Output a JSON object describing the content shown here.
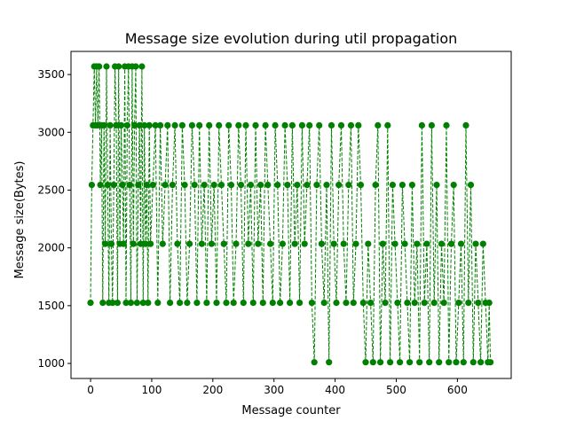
{
  "chart_data": {
    "type": "line",
    "title": "Message size evolution during util propagation",
    "xlabel": "Message counter",
    "ylabel": "Message size(Bytes)",
    "xlim": [
      -32,
      688
    ],
    "ylim": [
      870,
      3700
    ],
    "xticks": [
      0,
      100,
      200,
      300,
      400,
      500,
      600
    ],
    "yticks": [
      1000,
      1500,
      2000,
      2500,
      3000,
      3500
    ],
    "grid": false,
    "line_style": "dashed",
    "marker": "circle",
    "series_color": "#008000",
    "levels": [
      1010,
      1525,
      2035,
      2545,
      3060,
      3570
    ],
    "series": [
      {
        "values": [
          [
            0,
            1525
          ],
          [
            2,
            2545
          ],
          [
            4,
            3060
          ],
          [
            6,
            3570
          ],
          [
            8,
            3060
          ],
          [
            10,
            3570
          ],
          [
            12,
            3060
          ],
          [
            14,
            3570
          ],
          [
            16,
            2545
          ],
          [
            18,
            3060
          ],
          [
            20,
            1525
          ],
          [
            22,
            3060
          ],
          [
            24,
            2035
          ],
          [
            26,
            3570
          ],
          [
            28,
            2545
          ],
          [
            30,
            1525
          ],
          [
            32,
            3060
          ],
          [
            34,
            2035
          ],
          [
            36,
            1525
          ],
          [
            38,
            2545
          ],
          [
            40,
            3570
          ],
          [
            42,
            3060
          ],
          [
            44,
            1525
          ],
          [
            46,
            3570
          ],
          [
            48,
            2035
          ],
          [
            50,
            3060
          ],
          [
            52,
            2545
          ],
          [
            54,
            2035
          ],
          [
            56,
            3570
          ],
          [
            58,
            1525
          ],
          [
            60,
            3060
          ],
          [
            62,
            3570
          ],
          [
            64,
            2545
          ],
          [
            66,
            1525
          ],
          [
            68,
            3570
          ],
          [
            70,
            2035
          ],
          [
            72,
            3060
          ],
          [
            74,
            3570
          ],
          [
            76,
            1525
          ],
          [
            78,
            2545
          ],
          [
            80,
            3060
          ],
          [
            82,
            2035
          ],
          [
            84,
            3570
          ],
          [
            86,
            1525
          ],
          [
            88,
            3060
          ],
          [
            90,
            2035
          ],
          [
            92,
            2545
          ],
          [
            94,
            1525
          ],
          [
            96,
            3060
          ],
          [
            98,
            2035
          ],
          [
            102,
            2545
          ],
          [
            106,
            3060
          ],
          [
            110,
            1525
          ],
          [
            114,
            3060
          ],
          [
            118,
            2035
          ],
          [
            122,
            2545
          ],
          [
            126,
            3060
          ],
          [
            130,
            1525
          ],
          [
            134,
            2545
          ],
          [
            138,
            3060
          ],
          [
            142,
            2035
          ],
          [
            146,
            1525
          ],
          [
            150,
            3060
          ],
          [
            154,
            2545
          ],
          [
            158,
            1525
          ],
          [
            162,
            2035
          ],
          [
            166,
            3060
          ],
          [
            170,
            2545
          ],
          [
            174,
            1525
          ],
          [
            178,
            3060
          ],
          [
            182,
            2035
          ],
          [
            186,
            2545
          ],
          [
            190,
            1525
          ],
          [
            194,
            3060
          ],
          [
            198,
            2035
          ],
          [
            202,
            2545
          ],
          [
            206,
            1525
          ],
          [
            210,
            3060
          ],
          [
            214,
            2545
          ],
          [
            218,
            2035
          ],
          [
            222,
            1525
          ],
          [
            226,
            3060
          ],
          [
            230,
            2545
          ],
          [
            234,
            1525
          ],
          [
            238,
            2035
          ],
          [
            242,
            3060
          ],
          [
            246,
            2545
          ],
          [
            250,
            1525
          ],
          [
            254,
            3060
          ],
          [
            258,
            2035
          ],
          [
            262,
            2545
          ],
          [
            266,
            1525
          ],
          [
            270,
            3060
          ],
          [
            274,
            2035
          ],
          [
            278,
            2545
          ],
          [
            282,
            1525
          ],
          [
            286,
            3060
          ],
          [
            290,
            2545
          ],
          [
            294,
            2035
          ],
          [
            298,
            1525
          ],
          [
            302,
            3060
          ],
          [
            306,
            2545
          ],
          [
            310,
            1525
          ],
          [
            314,
            2035
          ],
          [
            318,
            3060
          ],
          [
            322,
            2545
          ],
          [
            326,
            1525
          ],
          [
            330,
            3060
          ],
          [
            334,
            2035
          ],
          [
            338,
            2545
          ],
          [
            342,
            1525
          ],
          [
            346,
            3060
          ],
          [
            350,
            2035
          ],
          [
            354,
            2545
          ],
          [
            358,
            3060
          ],
          [
            362,
            1525
          ],
          [
            366,
            1010
          ],
          [
            370,
            2545
          ],
          [
            374,
            3060
          ],
          [
            378,
            2035
          ],
          [
            382,
            1525
          ],
          [
            386,
            2545
          ],
          [
            390,
            1010
          ],
          [
            394,
            3060
          ],
          [
            398,
            2035
          ],
          [
            402,
            1525
          ],
          [
            406,
            2545
          ],
          [
            410,
            3060
          ],
          [
            414,
            2035
          ],
          [
            418,
            1525
          ],
          [
            422,
            2545
          ],
          [
            426,
            3060
          ],
          [
            430,
            1525
          ],
          [
            434,
            2035
          ],
          [
            438,
            3060
          ],
          [
            442,
            2545
          ],
          [
            446,
            1525
          ],
          [
            450,
            1010
          ],
          [
            454,
            2035
          ],
          [
            458,
            1525
          ],
          [
            462,
            1010
          ],
          [
            466,
            2545
          ],
          [
            470,
            3060
          ],
          [
            474,
            1010
          ],
          [
            478,
            2035
          ],
          [
            482,
            1525
          ],
          [
            486,
            3060
          ],
          [
            490,
            1010
          ],
          [
            494,
            2545
          ],
          [
            498,
            2035
          ],
          [
            502,
            1525
          ],
          [
            506,
            1010
          ],
          [
            510,
            2545
          ],
          [
            514,
            2035
          ],
          [
            518,
            1525
          ],
          [
            522,
            1010
          ],
          [
            526,
            2545
          ],
          [
            530,
            1525
          ],
          [
            534,
            2035
          ],
          [
            538,
            1010
          ],
          [
            542,
            3060
          ],
          [
            546,
            1525
          ],
          [
            550,
            2035
          ],
          [
            554,
            1010
          ],
          [
            558,
            3060
          ],
          [
            562,
            1525
          ],
          [
            566,
            2545
          ],
          [
            570,
            1010
          ],
          [
            574,
            2035
          ],
          [
            578,
            1525
          ],
          [
            582,
            3060
          ],
          [
            586,
            1010
          ],
          [
            590,
            2035
          ],
          [
            594,
            2545
          ],
          [
            598,
            1010
          ],
          [
            602,
            1525
          ],
          [
            606,
            2035
          ],
          [
            610,
            1010
          ],
          [
            614,
            3060
          ],
          [
            618,
            1525
          ],
          [
            622,
            2545
          ],
          [
            626,
            1010
          ],
          [
            630,
            2035
          ],
          [
            634,
            1525
          ],
          [
            638,
            1010
          ],
          [
            642,
            2035
          ],
          [
            646,
            1525
          ],
          [
            650,
            1010
          ],
          [
            652,
            1525
          ],
          [
            654,
            1010
          ]
        ]
      }
    ]
  }
}
